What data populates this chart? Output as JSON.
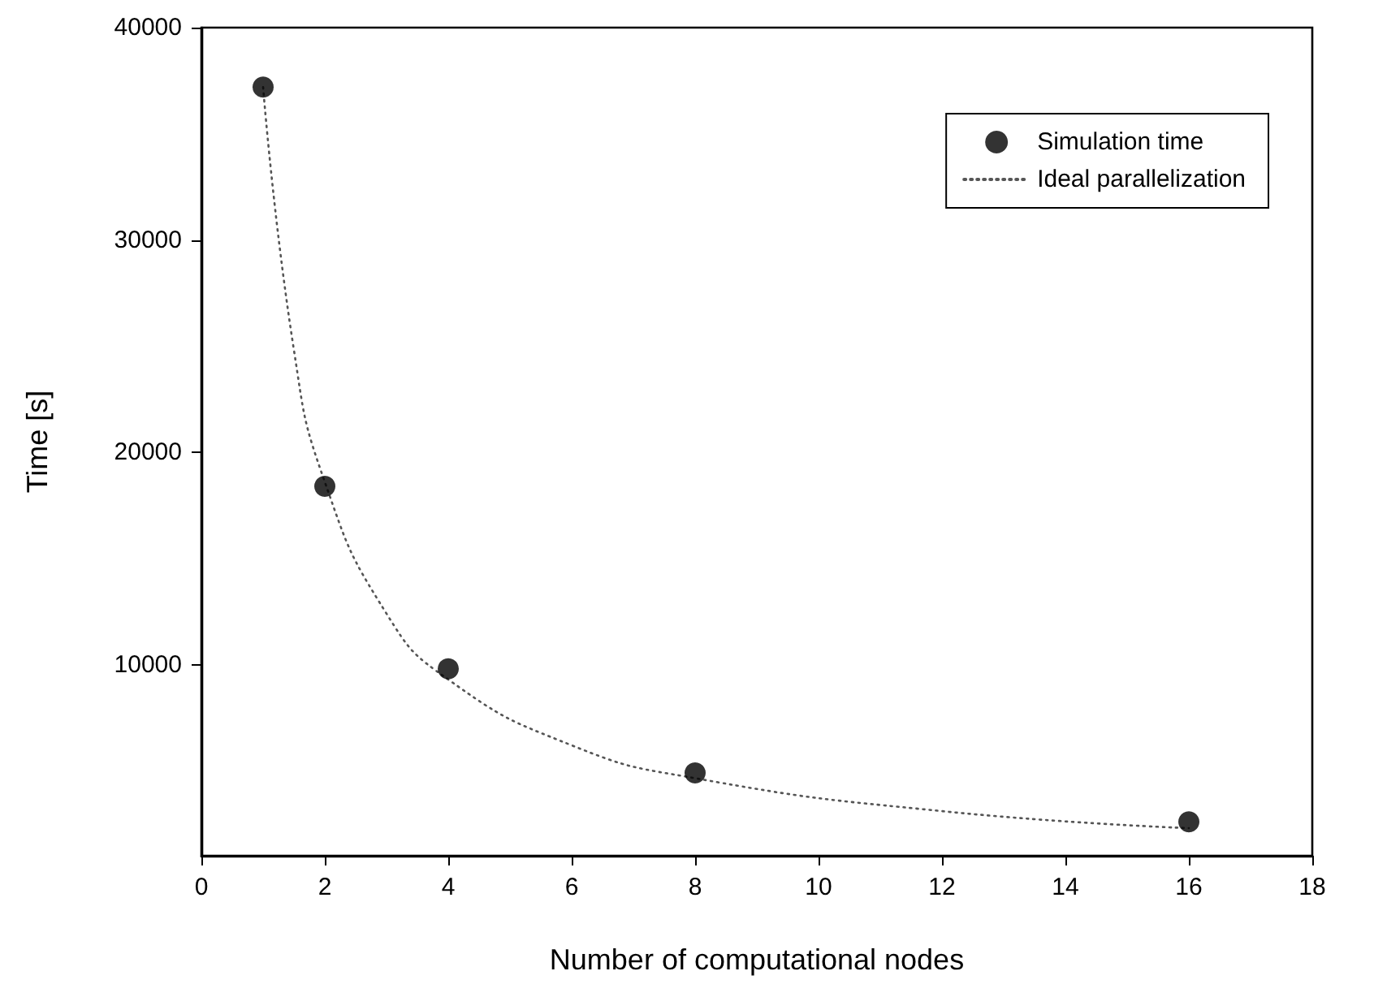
{
  "chart_data": {
    "type": "scatter",
    "xlabel": "Number of computational nodes",
    "ylabel": "Time [s]",
    "xlim": [
      0,
      18
    ],
    "xticks": [
      0,
      2,
      4,
      6,
      8,
      10,
      12,
      14,
      16,
      18
    ],
    "ylim": [
      1000,
      40000
    ],
    "yticks": [
      10000,
      20000,
      30000,
      40000
    ],
    "grid": false,
    "legend": "top right",
    "series": [
      {
        "name": "Simulation time",
        "marker": "circle",
        "color": "#000000",
        "x": [
          1,
          2,
          4,
          8,
          16
        ],
        "values": [
          37200,
          18400,
          9800,
          4900,
          2600
        ]
      },
      {
        "name": "Ideal parallelization",
        "type": "line",
        "marker": "none",
        "line_style": "dotted",
        "color": "#555555",
        "x": [
          1,
          1.5,
          2,
          3,
          4,
          6,
          8,
          12,
          16
        ],
        "values": [
          37200,
          24800,
          18600,
          12400,
          9300,
          6200,
          4650,
          3100,
          2300
        ]
      }
    ]
  }
}
